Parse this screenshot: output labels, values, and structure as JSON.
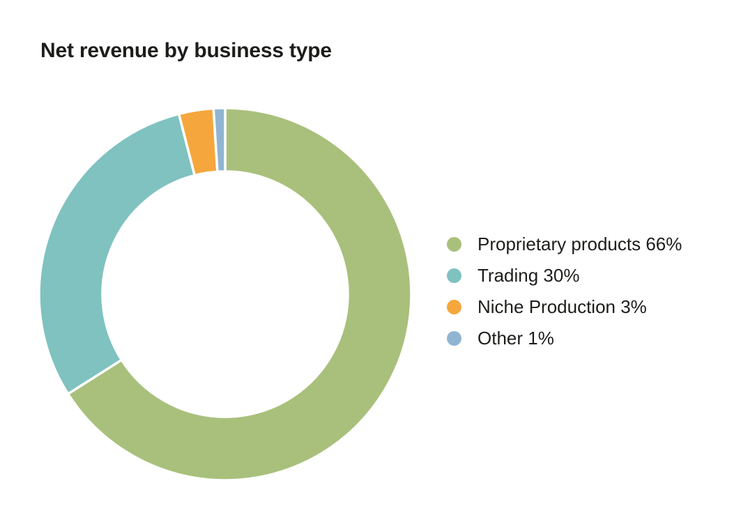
{
  "page": {
    "background": "#ffffff"
  },
  "title": "Net revenue by business type",
  "chart_data": {
    "type": "pie",
    "variant": "donut",
    "title": "Net revenue by business type",
    "direction": "clockwise",
    "start_angle_deg": 0,
    "inner_radius_ratio": 0.66,
    "legend_position": "right",
    "gap_color": "#ffffff",
    "series": [
      {
        "label": "Proprietary products",
        "value": 66,
        "unit": "%",
        "color": "#a9c07c",
        "legend_text": "Proprietary products 66%"
      },
      {
        "label": "Trading",
        "value": 30,
        "unit": "%",
        "color": "#7fc2c0",
        "legend_text": "Trading 30%"
      },
      {
        "label": "Niche Production",
        "value": 3,
        "unit": "%",
        "color": "#f5a73d",
        "legend_text": "Niche Production 3%"
      },
      {
        "label": "Other",
        "value": 1,
        "unit": "%",
        "color": "#90b5d2",
        "legend_text": "Other 1%"
      }
    ]
  }
}
